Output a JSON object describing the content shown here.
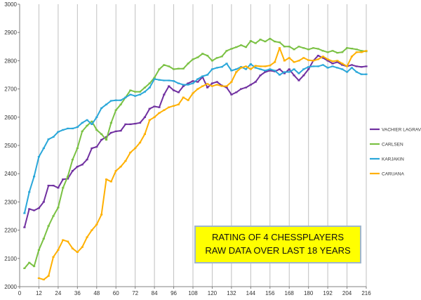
{
  "chart_data": {
    "type": "line",
    "title": "",
    "xlabel": "",
    "ylabel": "",
    "xlim": [
      0,
      216
    ],
    "ylim": [
      2000,
      3000
    ],
    "x_ticks": [
      0,
      12,
      24,
      36,
      48,
      60,
      72,
      84,
      96,
      108,
      120,
      132,
      144,
      156,
      168,
      180,
      192,
      204,
      216
    ],
    "y_ticks": [
      2000,
      2100,
      2200,
      2300,
      2400,
      2500,
      2600,
      2700,
      2800,
      2900,
      3000
    ],
    "grid": {
      "vertical": true,
      "horizontal": false
    },
    "legend_position": "right",
    "annotation": {
      "lines": [
        "RATING OF 4 CHESSPLAYERS",
        "RAW DATA OVER LAST 18 YEARS"
      ],
      "background": "#ffff00",
      "border": "#9fb6cd"
    },
    "series": [
      {
        "name": "VACHIER LAGRAVE",
        "color": "#7030a0",
        "marker": "dash",
        "points": [
          [
            3,
            2210
          ],
          [
            6,
            2275
          ],
          [
            9,
            2270
          ],
          [
            12,
            2278
          ],
          [
            15,
            2300
          ],
          [
            18,
            2358
          ],
          [
            21,
            2358
          ],
          [
            24,
            2350
          ],
          [
            27,
            2380
          ],
          [
            30,
            2382
          ],
          [
            33,
            2410
          ],
          [
            36,
            2425
          ],
          [
            39,
            2432
          ],
          [
            42,
            2450
          ],
          [
            45,
            2490
          ],
          [
            48,
            2495
          ],
          [
            51,
            2520
          ],
          [
            54,
            2530
          ],
          [
            57,
            2545
          ],
          [
            60,
            2550
          ],
          [
            63,
            2552
          ],
          [
            66,
            2575
          ],
          [
            69,
            2575
          ],
          [
            72,
            2577
          ],
          [
            75,
            2580
          ],
          [
            78,
            2600
          ],
          [
            81,
            2630
          ],
          [
            84,
            2638
          ],
          [
            87,
            2635
          ],
          [
            90,
            2680
          ],
          [
            93,
            2710
          ],
          [
            96,
            2695
          ],
          [
            99,
            2688
          ],
          [
            102,
            2710
          ],
          [
            105,
            2720
          ],
          [
            108,
            2728
          ],
          [
            111,
            2725
          ],
          [
            114,
            2742
          ],
          [
            117,
            2705
          ],
          [
            120,
            2720
          ],
          [
            123,
            2725
          ],
          [
            126,
            2712
          ],
          [
            129,
            2705
          ],
          [
            132,
            2680
          ],
          [
            135,
            2688
          ],
          [
            138,
            2700
          ],
          [
            141,
            2705
          ],
          [
            144,
            2715
          ],
          [
            147,
            2725
          ],
          [
            150,
            2748
          ],
          [
            153,
            2760
          ],
          [
            156,
            2765
          ],
          [
            159,
            2762
          ],
          [
            162,
            2770
          ],
          [
            165,
            2755
          ],
          [
            168,
            2770
          ],
          [
            171,
            2748
          ],
          [
            174,
            2730
          ],
          [
            177,
            2748
          ],
          [
            180,
            2770
          ],
          [
            183,
            2800
          ],
          [
            186,
            2818
          ],
          [
            189,
            2810
          ],
          [
            192,
            2800
          ],
          [
            195,
            2790
          ],
          [
            198,
            2795
          ],
          [
            201,
            2785
          ],
          [
            204,
            2780
          ],
          [
            207,
            2785
          ],
          [
            210,
            2780
          ],
          [
            213,
            2778
          ],
          [
            216,
            2780
          ]
        ]
      },
      {
        "name": "CARLSEN",
        "color": "#7ac143",
        "marker": "dash",
        "points": [
          [
            3,
            2065
          ],
          [
            6,
            2085
          ],
          [
            9,
            2072
          ],
          [
            12,
            2130
          ],
          [
            15,
            2170
          ],
          [
            18,
            2215
          ],
          [
            21,
            2250
          ],
          [
            24,
            2280
          ],
          [
            27,
            2350
          ],
          [
            30,
            2390
          ],
          [
            33,
            2450
          ],
          [
            36,
            2490
          ],
          [
            39,
            2550
          ],
          [
            42,
            2570
          ],
          [
            45,
            2585
          ],
          [
            48,
            2555
          ],
          [
            51,
            2540
          ],
          [
            54,
            2520
          ],
          [
            57,
            2580
          ],
          [
            60,
            2625
          ],
          [
            63,
            2645
          ],
          [
            66,
            2670
          ],
          [
            69,
            2695
          ],
          [
            72,
            2690
          ],
          [
            75,
            2690
          ],
          [
            78,
            2705
          ],
          [
            81,
            2720
          ],
          [
            84,
            2740
          ],
          [
            87,
            2770
          ],
          [
            90,
            2785
          ],
          [
            93,
            2780
          ],
          [
            96,
            2770
          ],
          [
            99,
            2772
          ],
          [
            102,
            2772
          ],
          [
            105,
            2790
          ],
          [
            108,
            2805
          ],
          [
            111,
            2812
          ],
          [
            114,
            2825
          ],
          [
            117,
            2818
          ],
          [
            120,
            2800
          ],
          [
            123,
            2810
          ],
          [
            126,
            2815
          ],
          [
            129,
            2835
          ],
          [
            132,
            2842
          ],
          [
            135,
            2848
          ],
          [
            138,
            2855
          ],
          [
            141,
            2848
          ],
          [
            144,
            2870
          ],
          [
            147,
            2862
          ],
          [
            150,
            2875
          ],
          [
            153,
            2868
          ],
          [
            156,
            2878
          ],
          [
            159,
            2868
          ],
          [
            162,
            2865
          ],
          [
            165,
            2850
          ],
          [
            168,
            2850
          ],
          [
            171,
            2840
          ],
          [
            174,
            2850
          ],
          [
            177,
            2845
          ],
          [
            180,
            2840
          ],
          [
            183,
            2845
          ],
          [
            186,
            2842
          ],
          [
            189,
            2835
          ],
          [
            192,
            2830
          ],
          [
            195,
            2835
          ],
          [
            198,
            2828
          ],
          [
            201,
            2830
          ],
          [
            204,
            2845
          ],
          [
            207,
            2843
          ],
          [
            210,
            2840
          ],
          [
            213,
            2835
          ],
          [
            216,
            2833
          ]
        ]
      },
      {
        "name": "KARJAKIN",
        "color": "#2aa7d9",
        "marker": "dash",
        "points": [
          [
            3,
            2260
          ],
          [
            6,
            2335
          ],
          [
            9,
            2390
          ],
          [
            12,
            2460
          ],
          [
            15,
            2490
          ],
          [
            18,
            2522
          ],
          [
            21,
            2530
          ],
          [
            24,
            2548
          ],
          [
            27,
            2555
          ],
          [
            30,
            2560
          ],
          [
            33,
            2560
          ],
          [
            36,
            2565
          ],
          [
            39,
            2580
          ],
          [
            42,
            2590
          ],
          [
            45,
            2575
          ],
          [
            48,
            2600
          ],
          [
            51,
            2632
          ],
          [
            54,
            2645
          ],
          [
            57,
            2658
          ],
          [
            60,
            2660
          ],
          [
            63,
            2660
          ],
          [
            66,
            2670
          ],
          [
            69,
            2680
          ],
          [
            72,
            2675
          ],
          [
            75,
            2680
          ],
          [
            78,
            2690
          ],
          [
            81,
            2705
          ],
          [
            84,
            2735
          ],
          [
            87,
            2732
          ],
          [
            90,
            2730
          ],
          [
            93,
            2730
          ],
          [
            96,
            2728
          ],
          [
            99,
            2720
          ],
          [
            102,
            2715
          ],
          [
            105,
            2715
          ],
          [
            108,
            2720
          ],
          [
            111,
            2735
          ],
          [
            114,
            2745
          ],
          [
            117,
            2750
          ],
          [
            120,
            2770
          ],
          [
            123,
            2775
          ],
          [
            126,
            2778
          ],
          [
            129,
            2790
          ],
          [
            132,
            2765
          ],
          [
            135,
            2770
          ],
          [
            138,
            2778
          ],
          [
            141,
            2770
          ],
          [
            144,
            2788
          ],
          [
            147,
            2775
          ],
          [
            150,
            2770
          ],
          [
            153,
            2765
          ],
          [
            156,
            2770
          ],
          [
            159,
            2765
          ],
          [
            162,
            2750
          ],
          [
            165,
            2760
          ],
          [
            168,
            2760
          ],
          [
            171,
            2770
          ],
          [
            174,
            2755
          ],
          [
            177,
            2770
          ],
          [
            180,
            2778
          ],
          [
            183,
            2780
          ],
          [
            186,
            2780
          ],
          [
            189,
            2785
          ],
          [
            192,
            2775
          ],
          [
            195,
            2780
          ],
          [
            198,
            2775
          ],
          [
            201,
            2770
          ],
          [
            204,
            2760
          ],
          [
            207,
            2775
          ],
          [
            210,
            2760
          ],
          [
            213,
            2752
          ],
          [
            216,
            2752
          ]
        ]
      },
      {
        "name": "CARUANA",
        "color": "#ffb000",
        "marker": "dash",
        "points": [
          [
            12,
            2030
          ],
          [
            15,
            2025
          ],
          [
            18,
            2038
          ],
          [
            21,
            2105
          ],
          [
            24,
            2130
          ],
          [
            27,
            2165
          ],
          [
            30,
            2160
          ],
          [
            33,
            2135
          ],
          [
            36,
            2122
          ],
          [
            39,
            2140
          ],
          [
            42,
            2175
          ],
          [
            45,
            2200
          ],
          [
            48,
            2220
          ],
          [
            51,
            2255
          ],
          [
            54,
            2380
          ],
          [
            57,
            2372
          ],
          [
            60,
            2410
          ],
          [
            63,
            2425
          ],
          [
            66,
            2445
          ],
          [
            69,
            2475
          ],
          [
            72,
            2490
          ],
          [
            75,
            2510
          ],
          [
            78,
            2540
          ],
          [
            81,
            2590
          ],
          [
            84,
            2600
          ],
          [
            87,
            2615
          ],
          [
            90,
            2625
          ],
          [
            93,
            2635
          ],
          [
            96,
            2640
          ],
          [
            99,
            2645
          ],
          [
            102,
            2670
          ],
          [
            105,
            2660
          ],
          [
            108,
            2685
          ],
          [
            111,
            2700
          ],
          [
            114,
            2710
          ],
          [
            117,
            2718
          ],
          [
            120,
            2710
          ],
          [
            123,
            2715
          ],
          [
            126,
            2710
          ],
          [
            129,
            2710
          ],
          [
            132,
            2725
          ],
          [
            135,
            2760
          ],
          [
            138,
            2775
          ],
          [
            141,
            2780
          ],
          [
            144,
            2770
          ],
          [
            147,
            2782
          ],
          [
            150,
            2780
          ],
          [
            153,
            2780
          ],
          [
            156,
            2783
          ],
          [
            159,
            2795
          ],
          [
            162,
            2845
          ],
          [
            165,
            2800
          ],
          [
            168,
            2810
          ],
          [
            171,
            2795
          ],
          [
            174,
            2800
          ],
          [
            177,
            2810
          ],
          [
            180,
            2802
          ],
          [
            183,
            2800
          ],
          [
            186,
            2805
          ],
          [
            189,
            2815
          ],
          [
            192,
            2805
          ],
          [
            195,
            2798
          ],
          [
            198,
            2800
          ],
          [
            201,
            2790
          ],
          [
            204,
            2780
          ],
          [
            207,
            2815
          ],
          [
            210,
            2830
          ],
          [
            213,
            2830
          ],
          [
            216,
            2835
          ]
        ]
      }
    ]
  }
}
